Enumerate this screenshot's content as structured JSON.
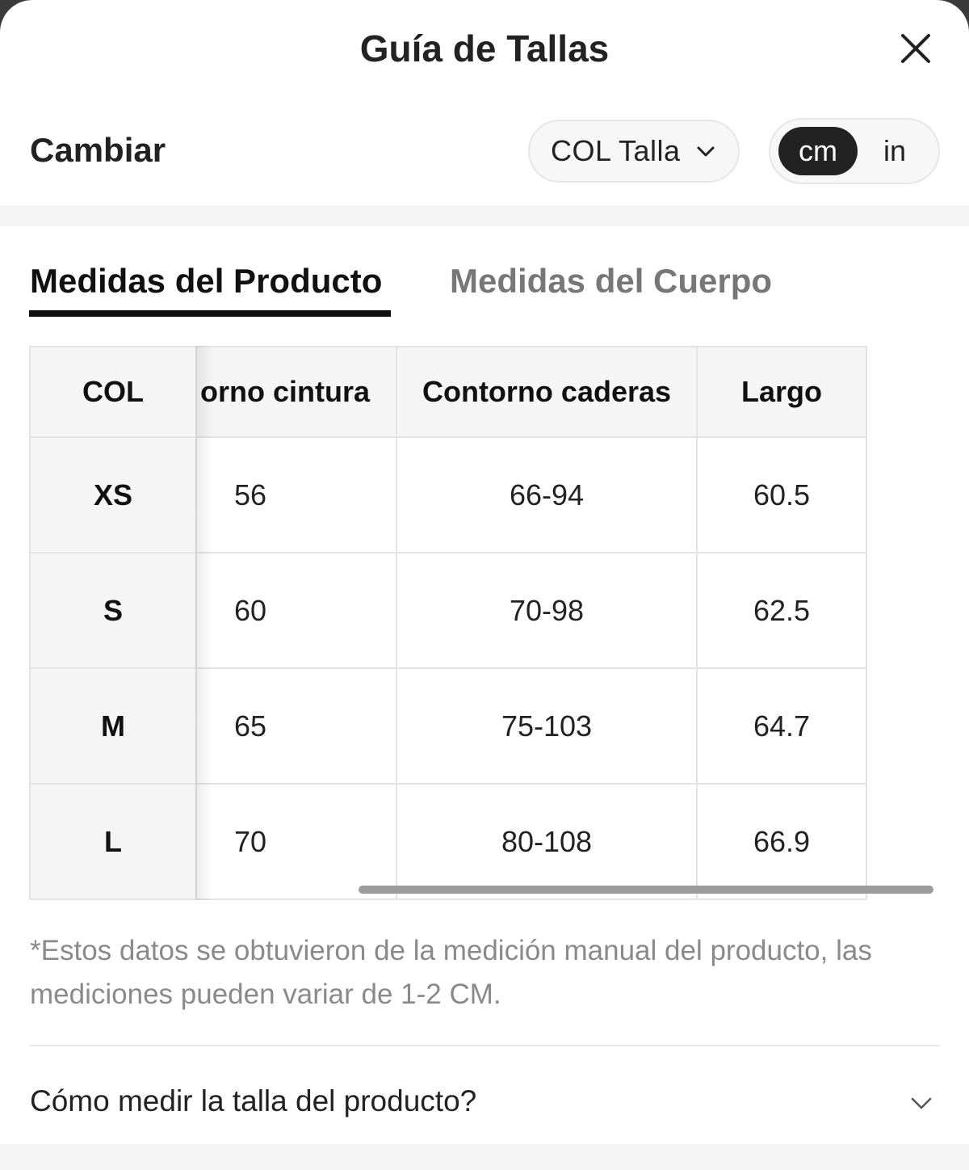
{
  "header": {
    "title": "Guía de Tallas",
    "close_icon": "close-icon"
  },
  "controls": {
    "change_label": "Cambiar",
    "size_system": "COL Talla",
    "units": {
      "cm": "cm",
      "in": "in",
      "selected": "cm"
    }
  },
  "tabs": [
    {
      "label": "Medidas del Producto",
      "active": true
    },
    {
      "label": "Medidas del Cuerpo",
      "active": false
    }
  ],
  "table": {
    "headers": [
      "COL",
      "orno cintura",
      "Contorno caderas",
      "Largo"
    ],
    "rows": [
      {
        "size": "XS",
        "waist": "56",
        "hips": "66-94",
        "length": "60.5"
      },
      {
        "size": "S",
        "waist": "60",
        "hips": "70-98",
        "length": "62.5"
      },
      {
        "size": "M",
        "waist": "65",
        "hips": "75-103",
        "length": "64.7"
      },
      {
        "size": "L",
        "waist": "70",
        "hips": "80-108",
        "length": "66.9"
      }
    ]
  },
  "note": "*Estos datos se obtuvieron de la medición manual del producto, las mediciones pueden variar de 1-2 CM.",
  "howto": {
    "label": "Cómo medir la talla del producto?",
    "icon": "chevron-down-icon"
  },
  "colors": {
    "accent": "#222222",
    "muted_text": "#8a8a8a",
    "border": "#e4e4e4",
    "header_bg": "#f5f5f5"
  }
}
